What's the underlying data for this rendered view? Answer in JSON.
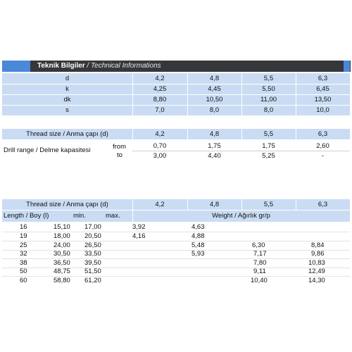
{
  "header": {
    "title": "Teknik Bilgiler",
    "subtitle": "/ Technical Informations"
  },
  "dims": {
    "rows": [
      {
        "label": "d",
        "values": [
          "4,2",
          "4,8",
          "5,5",
          "6,3"
        ]
      },
      {
        "label": "k",
        "values": [
          "4,25",
          "4,45",
          "5,50",
          "6,45"
        ]
      },
      {
        "label": "dk",
        "values": [
          "8,80",
          "10,50",
          "11,00",
          "13,50"
        ]
      },
      {
        "label": "s",
        "values": [
          "7,0",
          "8,0",
          "8,0",
          "10,0"
        ]
      }
    ]
  },
  "drill": {
    "thread_label": "Thread size / Anma çapı (d)",
    "sizes": [
      "4,2",
      "4,8",
      "5,5",
      "6,3"
    ],
    "range_label": "Drill range / Delme kapasitesi",
    "from_label": "from",
    "to_label": "to",
    "from": [
      "0,70",
      "1,75",
      "1,75",
      "2,60"
    ],
    "to": [
      "3,00",
      "4,40",
      "5,25",
      "-"
    ]
  },
  "weights": {
    "thread_label": "Thread size / Anma çapı (d)",
    "sizes": [
      "4,2",
      "4,8",
      "5,5",
      "6,3"
    ],
    "length_label": "Length / Boy (l)",
    "min_label": "min.",
    "max_label": "max.",
    "weight_label": "Weight / Ağırlık gr/p",
    "rows": [
      {
        "len": "16",
        "min": "15,10",
        "max": "17,00",
        "w": [
          "3,92",
          "4,63",
          "",
          ""
        ]
      },
      {
        "len": "19",
        "min": "18,00",
        "max": "20,50",
        "w": [
          "4,16",
          "4,88",
          "",
          ""
        ]
      },
      {
        "len": "25",
        "min": "24,00",
        "max": "26,50",
        "w": [
          "",
          "5,48",
          "6,30",
          "8,84"
        ]
      },
      {
        "len": "32",
        "min": "30,50",
        "max": "33,50",
        "w": [
          "",
          "5,93",
          "7,17",
          "9,86"
        ]
      },
      {
        "len": "38",
        "min": "36,50",
        "max": "39,50",
        "w": [
          "",
          "",
          "7,80",
          "10,83"
        ]
      },
      {
        "len": "50",
        "min": "48,75",
        "max": "51,50",
        "w": [
          "",
          "",
          "9,11",
          "12,49"
        ]
      },
      {
        "len": "60",
        "min": "58,80",
        "max": "61,20",
        "w": [
          "",
          "",
          "10,40",
          "14,30"
        ]
      }
    ]
  }
}
